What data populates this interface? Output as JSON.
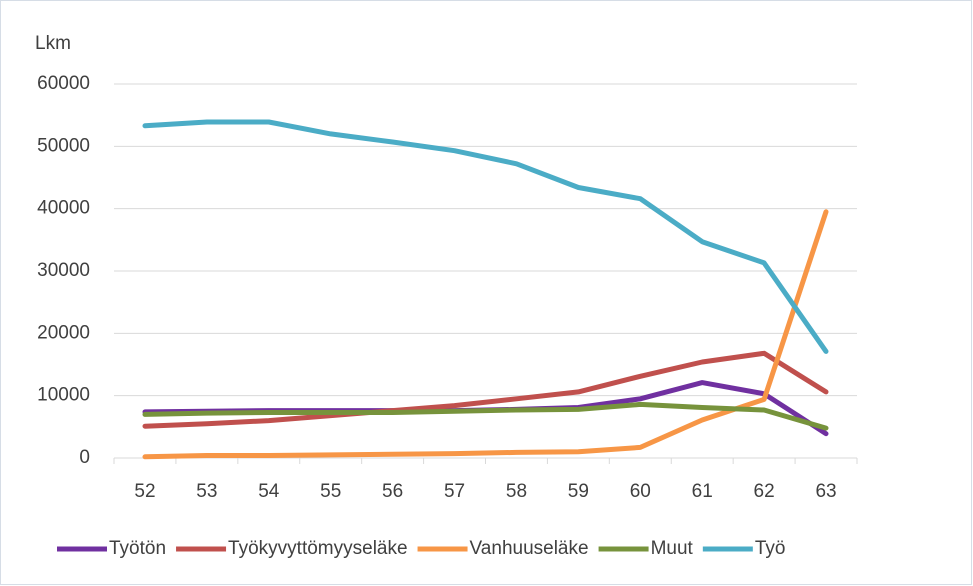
{
  "chart_data": {
    "type": "line",
    "y_label": "Lkm",
    "categories": [
      "52",
      "53",
      "54",
      "55",
      "56",
      "57",
      "58",
      "59",
      "60",
      "61",
      "62",
      "63"
    ],
    "series": [
      {
        "name": "Työtön",
        "color": "#7030a0",
        "values": [
          7400,
          7500,
          7600,
          7600,
          7600,
          7600,
          7800,
          8100,
          9500,
          12100,
          10300,
          3900
        ]
      },
      {
        "name": "Työkyvyttömyyseläke",
        "color": "#c0504d",
        "values": [
          5100,
          5500,
          6000,
          6800,
          7600,
          8400,
          9500,
          10600,
          13100,
          15400,
          16800,
          10600
        ]
      },
      {
        "name": "Vanhuuseläke",
        "color": "#f79646",
        "values": [
          200,
          400,
          400,
          500,
          600,
          700,
          900,
          1000,
          1700,
          6100,
          9400,
          39500
        ]
      },
      {
        "name": "Muut",
        "color": "#77933c",
        "values": [
          7000,
          7200,
          7300,
          7300,
          7300,
          7500,
          7700,
          7800,
          8600,
          8100,
          7700,
          4800
        ]
      },
      {
        "name": "Työ",
        "color": "#4bacc6",
        "values": [
          53300,
          53900,
          53900,
          52000,
          50700,
          49300,
          47200,
          43400,
          41600,
          34700,
          31300,
          17100
        ]
      }
    ],
    "ylim": [
      0,
      60000
    ],
    "yticks": [
      0,
      10000,
      20000,
      30000,
      40000,
      50000,
      60000
    ],
    "grid": true,
    "legend": "bottom"
  }
}
